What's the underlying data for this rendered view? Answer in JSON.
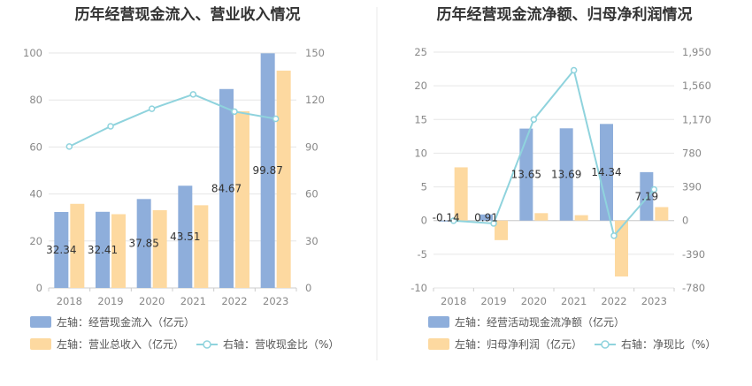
{
  "chart_data": [
    {
      "type": "bar",
      "title": "历年经营现金流入、营业收入情况",
      "categories": [
        "2018",
        "2019",
        "2020",
        "2021",
        "2022",
        "2023"
      ],
      "left_axis": {
        "ylim": [
          0,
          100
        ],
        "ticks": [
          "0",
          "20",
          "40",
          "60",
          "80",
          "100"
        ]
      },
      "right_axis": {
        "ylim": [
          0,
          150
        ],
        "ticks": [
          "0",
          "30",
          "60",
          "90",
          "120",
          "150"
        ]
      },
      "series": [
        {
          "name": "左轴：经营现金流入（亿元）",
          "kind": "bar",
          "axis": "left",
          "color": "#8eaedb",
          "values": [
            32.34,
            32.41,
            37.85,
            43.51,
            84.67,
            99.87
          ],
          "labels": [
            "32.34",
            "32.41",
            "37.85",
            "43.51",
            "84.67",
            "99.87"
          ]
        },
        {
          "name": "左轴：营业总收入（亿元）",
          "kind": "bar",
          "axis": "left",
          "color": "#fdd9a0",
          "values": [
            35.8,
            31.4,
            33.1,
            35.2,
            75.2,
            92.5
          ]
        },
        {
          "name": "右轴：营收现金比（%）",
          "kind": "line",
          "axis": "right",
          "color": "#8fd3dd",
          "values": [
            90.3,
            103.2,
            114.4,
            123.6,
            112.6,
            108.0
          ]
        }
      ],
      "legend": "bottom",
      "grid": true
    },
    {
      "type": "bar",
      "title": "历年经营现金流净额、归母净利润情况",
      "categories": [
        "2018",
        "2019",
        "2020",
        "2021",
        "2022",
        "2023"
      ],
      "left_axis": {
        "ylim": [
          -10,
          25
        ],
        "ticks": [
          "-10",
          "-5",
          "0",
          "5",
          "10",
          "15",
          "20",
          "25"
        ]
      },
      "right_axis": {
        "ylim": [
          -780,
          1950
        ],
        "ticks": [
          "-780",
          "-390",
          "0",
          "390",
          "780",
          "1,170",
          "1,560",
          "1,950"
        ]
      },
      "series": [
        {
          "name": "左轴：经营活动现金流净额（亿元）",
          "kind": "bar",
          "axis": "left",
          "color": "#8eaedb",
          "values": [
            -0.14,
            0.91,
            13.65,
            13.69,
            14.34,
            7.19
          ],
          "labels": [
            "-0.14",
            "0.91",
            "13.65",
            "13.69",
            "14.34",
            "7.19"
          ]
        },
        {
          "name": "左轴：归母净利润（亿元）",
          "kind": "bar",
          "axis": "left",
          "color": "#fdd9a0",
          "values": [
            7.9,
            -2.9,
            1.1,
            0.8,
            -8.3,
            2.0
          ]
        },
        {
          "name": "右轴：净现比（%）",
          "kind": "line",
          "axis": "right",
          "color": "#8fd3dd",
          "values": [
            -2,
            -33,
            1170,
            1740,
            -175,
            360
          ]
        }
      ],
      "legend": "bottom",
      "grid": true
    }
  ]
}
